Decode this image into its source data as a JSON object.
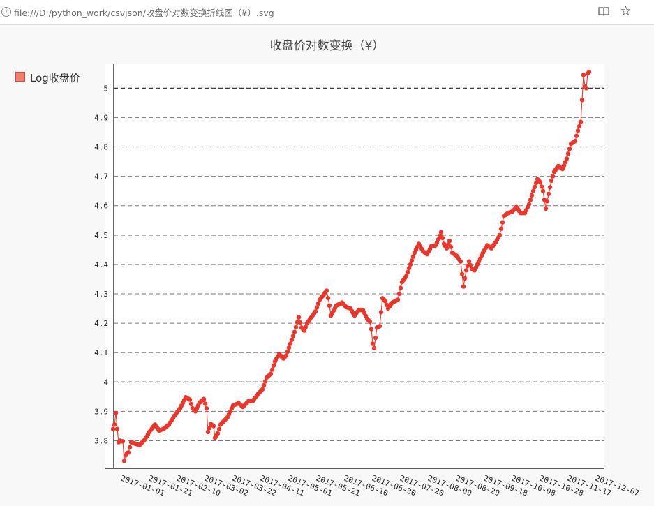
{
  "browser": {
    "url": "file:///D:/python_work/csvjson/收盘价对数变换折线图（¥）.svg",
    "info_icon": "info-icon",
    "reader_icon": "reader-view-icon",
    "bookmark_icon": "star-icon"
  },
  "chart_data": {
    "type": "line",
    "title": "收盘价对数变换（¥）",
    "legend": "Log收盘价",
    "legend_position": "top-left",
    "color": "#e6382c",
    "grid": true,
    "ylim": [
      3.71,
      5.08
    ],
    "yticks": [
      3.8,
      3.9,
      4,
      4.1,
      4.2,
      4.3,
      4.4,
      4.5,
      4.6,
      4.7,
      4.8,
      4.9,
      5
    ],
    "yticklabels": [
      "3.8",
      "3.9",
      "4",
      "4.1",
      "4.2",
      "4.3",
      "4.4",
      "4.5",
      "4.6",
      "4.7",
      "4.8",
      "4.9",
      "5"
    ],
    "x_start": "2017-01-01",
    "x_end": "2017-12-08",
    "xticklabels": [
      "2017-01-01",
      "2017-01-21",
      "2017-02-10",
      "2017-03-02",
      "2017-03-22",
      "2017-04-11",
      "2017-05-01",
      "2017-05-21",
      "2017-06-10",
      "2017-06-30",
      "2017-07-20",
      "2017-08-09",
      "2017-08-29",
      "2017-09-18",
      "2017-10-08",
      "2017-10-28",
      "2017-11-17",
      "2017-12-07"
    ],
    "series": [
      {
        "name": "Log收盘价",
        "anchors": [
          [
            "2017-01-01",
            3.84
          ],
          [
            "2017-01-02",
            3.855
          ],
          [
            "2017-01-03",
            3.894
          ],
          [
            "2017-01-04",
            3.84
          ],
          [
            "2017-01-05",
            3.795
          ],
          [
            "2017-01-06",
            3.8
          ],
          [
            "2017-01-07",
            3.798
          ],
          [
            "2017-01-08",
            3.798
          ],
          [
            "2017-01-09",
            3.731
          ],
          [
            "2017-01-10",
            3.75
          ],
          [
            "2017-01-11",
            3.758
          ],
          [
            "2017-01-12",
            3.76
          ],
          [
            "2017-01-14",
            3.795
          ],
          [
            "2017-01-17",
            3.79
          ],
          [
            "2017-01-20",
            3.785
          ],
          [
            "2017-01-24",
            3.805
          ],
          [
            "2017-01-27",
            3.83
          ],
          [
            "2017-01-31",
            3.855
          ],
          [
            "2017-02-03",
            3.835
          ],
          [
            "2017-02-06",
            3.84
          ],
          [
            "2017-02-10",
            3.855
          ],
          [
            "2017-02-14",
            3.885
          ],
          [
            "2017-02-18",
            3.91
          ],
          [
            "2017-02-22",
            3.948
          ],
          [
            "2017-02-25",
            3.94
          ],
          [
            "2017-02-27",
            3.91
          ],
          [
            "2017-03-01",
            3.9
          ],
          [
            "2017-03-04",
            3.93
          ],
          [
            "2017-03-07",
            3.942
          ],
          [
            "2017-03-09",
            3.91
          ],
          [
            "2017-03-10",
            3.83
          ],
          [
            "2017-03-12",
            3.857
          ],
          [
            "2017-03-14",
            3.85
          ],
          [
            "2017-03-15",
            3.81
          ],
          [
            "2017-03-17",
            3.825
          ],
          [
            "2017-03-19",
            3.855
          ],
          [
            "2017-03-24",
            3.88
          ],
          [
            "2017-03-28",
            3.92
          ],
          [
            "2017-04-01",
            3.928
          ],
          [
            "2017-04-04",
            3.915
          ],
          [
            "2017-04-08",
            3.935
          ],
          [
            "2017-04-11",
            3.935
          ],
          [
            "2017-04-15",
            3.96
          ],
          [
            "2017-04-18",
            3.975
          ],
          [
            "2017-04-21",
            4.015
          ],
          [
            "2017-04-24",
            4.028
          ],
          [
            "2017-04-27",
            4.07
          ],
          [
            "2017-04-30",
            4.095
          ],
          [
            "2017-05-03",
            4.08
          ],
          [
            "2017-05-05",
            4.09
          ],
          [
            "2017-05-08",
            4.13
          ],
          [
            "2017-05-11",
            4.17
          ],
          [
            "2017-05-14",
            4.22
          ],
          [
            "2017-05-16",
            4.185
          ],
          [
            "2017-05-18",
            4.175
          ],
          [
            "2017-05-20",
            4.2
          ],
          [
            "2017-05-23",
            4.22
          ],
          [
            "2017-05-26",
            4.24
          ],
          [
            "2017-05-29",
            4.28
          ],
          [
            "2017-06-01",
            4.298
          ],
          [
            "2017-06-03",
            4.311
          ],
          [
            "2017-06-05",
            4.26
          ],
          [
            "2017-06-06",
            4.226
          ],
          [
            "2017-06-10",
            4.26
          ],
          [
            "2017-06-14",
            4.27
          ],
          [
            "2017-06-17",
            4.255
          ],
          [
            "2017-06-20",
            4.25
          ],
          [
            "2017-06-23",
            4.226
          ],
          [
            "2017-06-26",
            4.245
          ],
          [
            "2017-06-29",
            4.245
          ],
          [
            "2017-07-02",
            4.215
          ],
          [
            "2017-07-04",
            4.205
          ],
          [
            "2017-07-05",
            4.18
          ],
          [
            "2017-07-06",
            4.13
          ],
          [
            "2017-07-07",
            4.115
          ],
          [
            "2017-07-09",
            4.185
          ],
          [
            "2017-07-11",
            4.19
          ],
          [
            "2017-07-13",
            4.285
          ],
          [
            "2017-07-15",
            4.275
          ],
          [
            "2017-07-17",
            4.25
          ],
          [
            "2017-07-20",
            4.27
          ],
          [
            "2017-07-24",
            4.28
          ],
          [
            "2017-07-27",
            4.34
          ],
          [
            "2017-07-30",
            4.36
          ],
          [
            "2017-08-02",
            4.4
          ],
          [
            "2017-08-05",
            4.44
          ],
          [
            "2017-08-08",
            4.47
          ],
          [
            "2017-08-11",
            4.445
          ],
          [
            "2017-08-14",
            4.435
          ],
          [
            "2017-08-17",
            4.462
          ],
          [
            "2017-08-20",
            4.465
          ],
          [
            "2017-08-22",
            4.485
          ],
          [
            "2017-08-24",
            4.51
          ],
          [
            "2017-08-26",
            4.47
          ],
          [
            "2017-08-28",
            4.455
          ],
          [
            "2017-08-30",
            4.48
          ],
          [
            "2017-09-01",
            4.44
          ],
          [
            "2017-09-04",
            4.43
          ],
          [
            "2017-09-07",
            4.41
          ],
          [
            "2017-09-09",
            4.325
          ],
          [
            "2017-09-11",
            4.38
          ],
          [
            "2017-09-13",
            4.41
          ],
          [
            "2017-09-15",
            4.385
          ],
          [
            "2017-09-17",
            4.38
          ],
          [
            "2017-09-20",
            4.41
          ],
          [
            "2017-09-23",
            4.44
          ],
          [
            "2017-09-26",
            4.465
          ],
          [
            "2017-09-29",
            4.455
          ],
          [
            "2017-10-02",
            4.475
          ],
          [
            "2017-10-05",
            4.5
          ],
          [
            "2017-10-08",
            4.565
          ],
          [
            "2017-10-11",
            4.575
          ],
          [
            "2017-10-14",
            4.58
          ],
          [
            "2017-10-17",
            4.595
          ],
          [
            "2017-10-20",
            4.575
          ],
          [
            "2017-10-23",
            4.575
          ],
          [
            "2017-10-26",
            4.605
          ],
          [
            "2017-10-29",
            4.65
          ],
          [
            "2017-11-01",
            4.69
          ],
          [
            "2017-11-03",
            4.68
          ],
          [
            "2017-11-05",
            4.65
          ],
          [
            "2017-11-07",
            4.59
          ],
          [
            "2017-11-09",
            4.64
          ],
          [
            "2017-11-11",
            4.685
          ],
          [
            "2017-11-13",
            4.715
          ],
          [
            "2017-11-16",
            4.735
          ],
          [
            "2017-11-19",
            4.725
          ],
          [
            "2017-11-22",
            4.76
          ],
          [
            "2017-11-25",
            4.81
          ],
          [
            "2017-11-28",
            4.82
          ],
          [
            "2017-11-30",
            4.855
          ],
          [
            "2017-12-02",
            4.885
          ],
          [
            "2017-12-03",
            4.96
          ],
          [
            "2017-12-04",
            5.045
          ],
          [
            "2017-12-05",
            5.005
          ],
          [
            "2017-12-06",
            5.0
          ],
          [
            "2017-12-07",
            5.05
          ],
          [
            "2017-12-08",
            5.055
          ]
        ]
      }
    ]
  }
}
